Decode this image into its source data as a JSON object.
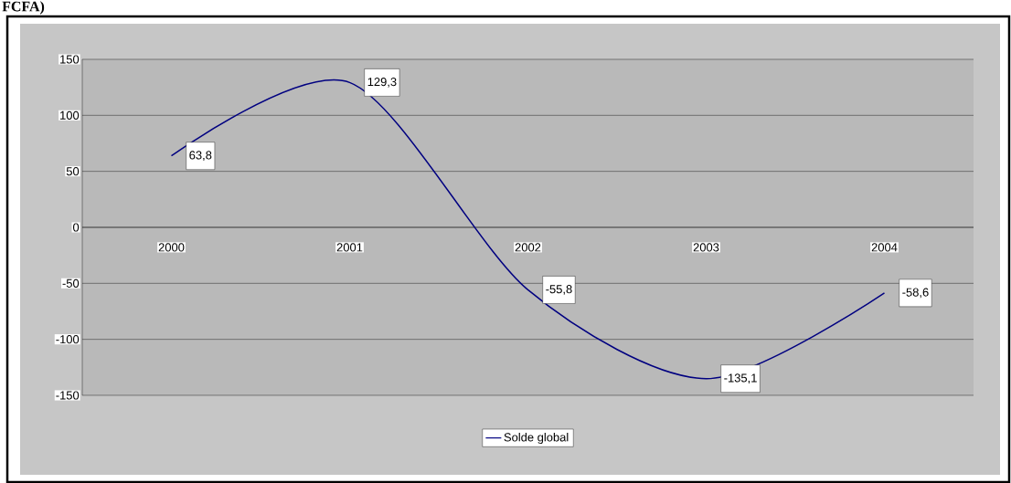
{
  "chart_data": {
    "type": "line",
    "title": "FCFA)",
    "categories": [
      "2000",
      "2001",
      "2002",
      "2003",
      "2004"
    ],
    "series": [
      {
        "name": "Solde global",
        "color": "#000080",
        "values": [
          63.8,
          129.3,
          -55.8,
          -135.1,
          -58.6
        ],
        "value_labels": [
          "63,8",
          "129,3",
          "-55,8",
          "-135,1",
          "-58,6"
        ]
      }
    ],
    "ylim": [
      -150,
      150
    ],
    "yticks": [
      -150,
      -100,
      -50,
      0,
      50,
      100,
      150
    ],
    "grid": "y",
    "legend": "bottom",
    "marker": "none",
    "line_style": "solid"
  }
}
